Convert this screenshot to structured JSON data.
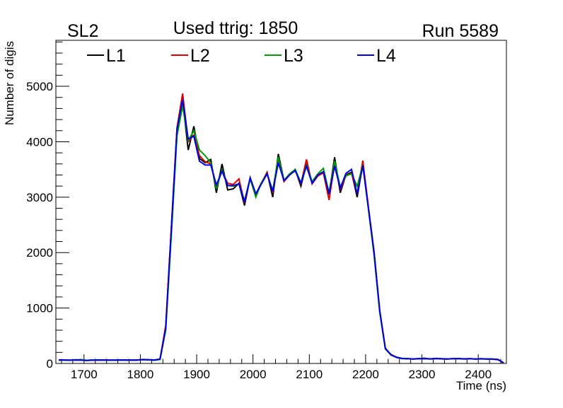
{
  "header": {
    "left_label": "SL2",
    "center_label": "Used ttrig: 1850",
    "right_label": "Run 5589"
  },
  "chart_data": {
    "type": "line",
    "title": "Used ttrig: 1850",
    "xlabel": "Time (ns)",
    "ylabel": "Number of digis",
    "xlim": [
      1650,
      2450
    ],
    "ylim": [
      0,
      5830
    ],
    "xticks": [
      1700,
      1800,
      1900,
      2000,
      2100,
      2200,
      2300,
      2400
    ],
    "yticks": [
      0,
      1000,
      2000,
      3000,
      4000,
      5000
    ],
    "grid": false,
    "legend_position": "top-left",
    "x_start": 1655,
    "x_step": 10,
    "series": [
      {
        "name": "L1",
        "color": "#000000",
        "values": [
          62,
          60,
          58,
          66,
          61,
          56,
          63,
          60,
          64,
          58,
          61,
          62,
          60,
          59,
          62,
          71,
          64,
          60,
          80,
          650,
          2400,
          4200,
          4750,
          3850,
          4280,
          3700,
          3620,
          3680,
          3080,
          3600,
          3130,
          3150,
          3250,
          2850,
          3350,
          3050,
          3250,
          3450,
          3000,
          3780,
          3300,
          3400,
          3500,
          3200,
          3600,
          3250,
          3400,
          3450,
          3050,
          3720,
          3080,
          3400,
          3450,
          3000,
          3600,
          2800,
          2000,
          950,
          270,
          160,
          110,
          90,
          86,
          80,
          88,
          95,
          82,
          90,
          84,
          80,
          86,
          88,
          82,
          85,
          80,
          84,
          82,
          78,
          70,
          10
        ]
      },
      {
        "name": "L2",
        "color": "#dd0000",
        "values": [
          58,
          60,
          60,
          62,
          60,
          58,
          60,
          58,
          62,
          60,
          58,
          64,
          60,
          58,
          60,
          68,
          66,
          60,
          80,
          680,
          2450,
          4250,
          4870,
          4000,
          4120,
          3750,
          3640,
          3600,
          3200,
          3480,
          3250,
          3230,
          3330,
          2900,
          3340,
          3050,
          3260,
          3440,
          3080,
          3680,
          3280,
          3400,
          3480,
          3240,
          3680,
          3240,
          3380,
          3440,
          2950,
          3600,
          3140,
          3380,
          3430,
          3060,
          3660,
          2820,
          2010,
          960,
          280,
          150,
          110,
          88,
          84,
          82,
          86,
          90,
          80,
          92,
          82,
          78,
          88,
          86,
          84,
          86,
          82,
          82,
          80,
          76,
          68,
          10
        ]
      },
      {
        "name": "L3",
        "color": "#009900",
        "values": [
          60,
          58,
          62,
          64,
          70,
          56,
          62,
          62,
          60,
          56,
          62,
          60,
          62,
          60,
          64,
          68,
          64,
          58,
          70,
          600,
          2300,
          4100,
          4650,
          4020,
          4200,
          3850,
          3750,
          3620,
          3150,
          3500,
          3210,
          3200,
          3240,
          2930,
          3330,
          3000,
          3260,
          3420,
          3120,
          3720,
          3300,
          3420,
          3500,
          3260,
          3580,
          3280,
          3420,
          3520,
          3080,
          3650,
          3180,
          3390,
          3420,
          3200,
          3580,
          2780,
          1950,
          930,
          260,
          150,
          115,
          92,
          86,
          82,
          90,
          86,
          84,
          88,
          86,
          82,
          84,
          90,
          80,
          84,
          82,
          86,
          80,
          80,
          72,
          12
        ]
      },
      {
        "name": "L4",
        "color": "#0000dd",
        "values": [
          64,
          62,
          58,
          62,
          60,
          52,
          60,
          62,
          62,
          60,
          60,
          62,
          62,
          60,
          60,
          72,
          66,
          62,
          80,
          640,
          2420,
          4220,
          4760,
          4050,
          4100,
          3650,
          3580,
          3580,
          3220,
          3470,
          3210,
          3210,
          3240,
          2920,
          3350,
          3060,
          3240,
          3420,
          3100,
          3620,
          3300,
          3400,
          3480,
          3250,
          3560,
          3250,
          3400,
          3460,
          3060,
          3560,
          3160,
          3430,
          3500,
          3060,
          3570,
          2800,
          2000,
          960,
          270,
          160,
          110,
          88,
          85,
          80,
          86,
          84,
          82,
          88,
          84,
          82,
          86,
          86,
          82,
          84,
          80,
          84,
          80,
          80,
          72,
          10
        ]
      }
    ]
  }
}
